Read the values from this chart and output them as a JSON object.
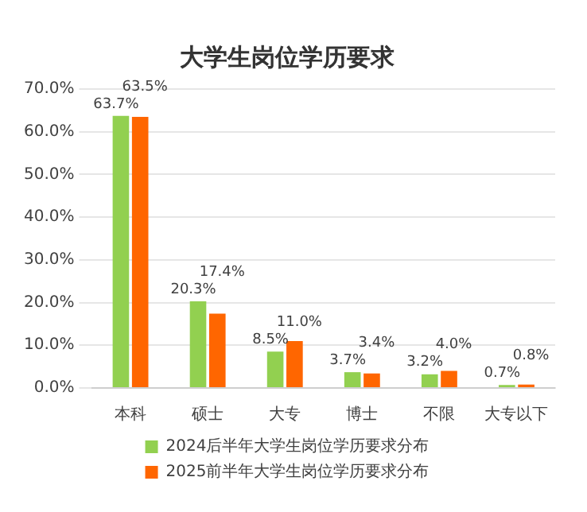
{
  "chart_data": {
    "type": "bar",
    "title": "大学生岗位学历要求",
    "categories": [
      "本科",
      "硕士",
      "大专",
      "博士",
      "不限",
      "大专以下"
    ],
    "series": [
      {
        "name": "2024后半年大学生岗位学历要求分布",
        "color": "#92d050",
        "values": [
          63.7,
          20.3,
          8.5,
          3.7,
          3.2,
          0.7
        ],
        "value_labels": [
          "63.7%",
          "20.3%",
          "8.5%",
          "3.7%",
          "3.2%",
          "0.7%"
        ]
      },
      {
        "name": "2025前半年大学生岗位学历要求分布",
        "color": "#ff6600",
        "values": [
          63.5,
          17.4,
          11.0,
          3.4,
          4.0,
          0.8
        ],
        "value_labels": [
          "63.5%",
          "17.4%",
          "11.0%",
          "3.4%",
          "4.0%",
          "0.8%"
        ]
      }
    ],
    "ylim": [
      0,
      70
    ],
    "yticks": [
      {
        "value": 0,
        "label": "0.0%"
      },
      {
        "value": 10,
        "label": "10.0%"
      },
      {
        "value": 20,
        "label": "20.0%"
      },
      {
        "value": 30,
        "label": "30.0%"
      },
      {
        "value": 40,
        "label": "40.0%"
      },
      {
        "value": 50,
        "label": "50.0%"
      },
      {
        "value": 60,
        "label": "60.0%"
      },
      {
        "value": 70,
        "label": "70.0%"
      }
    ],
    "grid": "y",
    "legend": "bottom"
  }
}
